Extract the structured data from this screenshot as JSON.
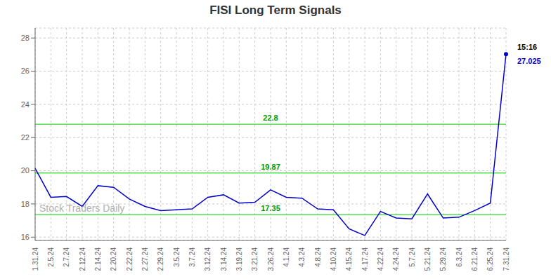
{
  "chart_data": {
    "type": "line",
    "title": "FISI Long Term Signals",
    "categories": [
      "1.31.24",
      "2.5.24",
      "2.7.24",
      "2.12.24",
      "2.14.24",
      "2.20.24",
      "2.22.24",
      "2.27.24",
      "2.29.24",
      "3.5.24",
      "3.7.24",
      "3.12.24",
      "3.14.24",
      "3.19.24",
      "3.21.24",
      "3.26.24",
      "4.1.24",
      "4.3.24",
      "4.8.24",
      "4.10.24",
      "4.15.24",
      "4.17.24",
      "4.22.24",
      "4.24.24",
      "5.7.24",
      "5.21.24",
      "5.29.24",
      "6.3.24",
      "6.21.24",
      "6.25.24",
      "7.31.24"
    ],
    "values": [
      20.15,
      18.4,
      18.45,
      17.85,
      19.1,
      19.0,
      18.3,
      17.85,
      17.6,
      17.65,
      17.7,
      18.4,
      18.55,
      18.05,
      18.1,
      18.85,
      18.4,
      18.35,
      17.7,
      17.65,
      16.5,
      16.1,
      17.55,
      17.15,
      17.1,
      18.6,
      17.15,
      17.2,
      17.6,
      18.05,
      27.025
    ],
    "color": "#0000cc",
    "ylim": [
      15.8,
      28.6
    ],
    "yticks": [
      16,
      18,
      20,
      22,
      24,
      26,
      28
    ],
    "grid": true,
    "hlines": [
      {
        "y": 17.35,
        "label": "17.35",
        "color": "#55dd55",
        "label_color": "#009900"
      },
      {
        "y": 19.87,
        "label": "19.87",
        "color": "#55dd55",
        "label_color": "#009900"
      },
      {
        "y": 22.8,
        "label": "22.8",
        "color": "#55dd55",
        "label_color": "#009900"
      }
    ],
    "annotations": [
      {
        "text": "15:16",
        "color": "#000000",
        "x": "7.31.24",
        "y": 27.025
      },
      {
        "text": "27.025",
        "color": "#0000cc",
        "x": "7.31.24",
        "y": 27.025
      },
      {
        "text": "Stock Traders Daily",
        "color": "#b0b0b0"
      }
    ]
  }
}
